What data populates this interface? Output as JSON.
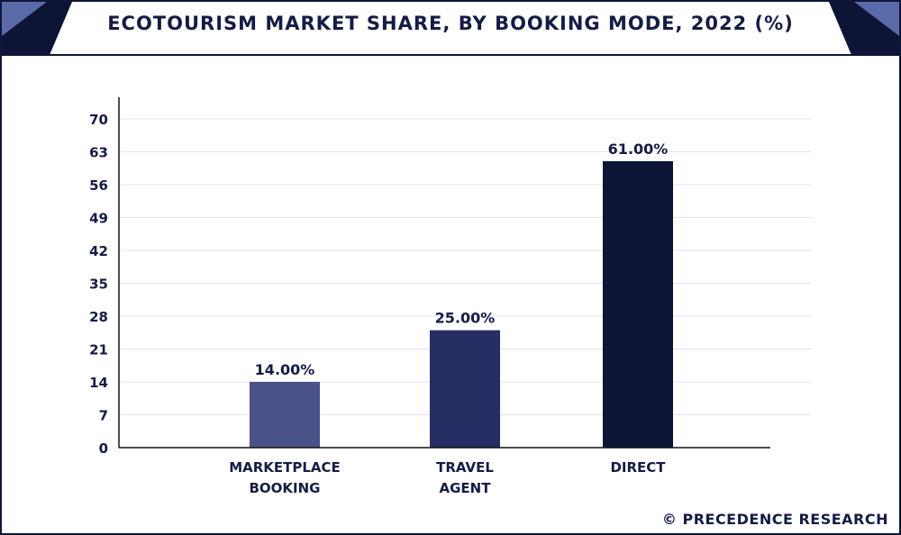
{
  "chart_data": {
    "type": "bar",
    "title": "ECOTOURISM MARKET SHARE, BY BOOKING MODE, 2022 (%)",
    "categories": [
      [
        "MARKETPLACE",
        "BOOKING"
      ],
      [
        "TRAVEL",
        "AGENT"
      ],
      [
        "DIRECT"
      ]
    ],
    "values": [
      14,
      25,
      61
    ],
    "value_labels": [
      "14.00%",
      "25.00%",
      "61.00%"
    ],
    "bar_colors": [
      "#4a5088",
      "#252d63",
      "#0d1436"
    ],
    "yticks": [
      "0",
      "7",
      "14",
      "21",
      "28",
      "35",
      "42",
      "49",
      "56",
      "63",
      "70"
    ],
    "ylim": [
      0,
      70
    ],
    "grid": true,
    "legend": "none"
  },
  "footer": {
    "text": "© PRECEDENCE RESEARCH"
  },
  "colors": {
    "frame": "#0d1636",
    "corner_light": "#5a6aa8",
    "corner_dark": "#0d1436",
    "grid": "#e3e3e3",
    "axis": "#111111",
    "text": "#141c44"
  }
}
